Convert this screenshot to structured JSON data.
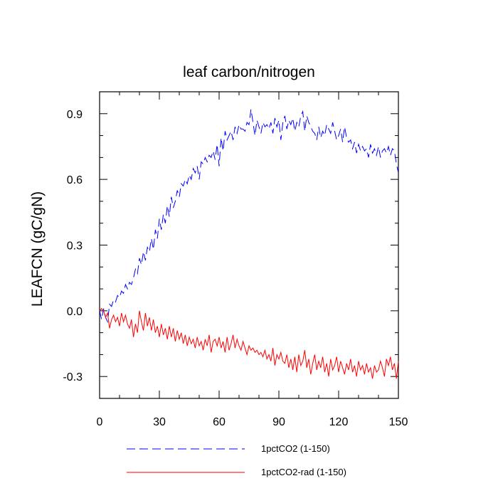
{
  "chart_data": {
    "type": "line",
    "title": "leaf carbon/nitrogen",
    "xlabel": "",
    "ylabel": "LEAFCN  (gC/gN)",
    "xlim": [
      0,
      150
    ],
    "ylim": [
      -0.4,
      1.0
    ],
    "xticks": [
      0,
      30,
      60,
      90,
      120,
      150
    ],
    "yticks": [
      -0.3,
      0.0,
      0.3,
      0.6,
      0.9
    ],
    "ytick_labels": [
      "-0.3",
      "0.0",
      "0.3",
      "0.6",
      "0.9"
    ],
    "xtick_labels": [
      "0",
      "30",
      "60",
      "90",
      "120",
      "150"
    ],
    "legend_position": "bottom",
    "series": [
      {
        "name": "1pctCO2 (1-150)",
        "color": "#0000ff",
        "style": "dashed",
        "values": [
          0.0,
          -0.04,
          0.01,
          -0.03,
          -0.05,
          0.03,
          0.02,
          0.05,
          0.04,
          0.07,
          0.06,
          0.09,
          0.08,
          0.12,
          0.1,
          0.13,
          0.12,
          0.15,
          0.19,
          0.17,
          0.24,
          0.21,
          0.27,
          0.23,
          0.29,
          0.27,
          0.33,
          0.28,
          0.37,
          0.33,
          0.42,
          0.37,
          0.44,
          0.4,
          0.48,
          0.43,
          0.52,
          0.47,
          0.5,
          0.55,
          0.52,
          0.58,
          0.57,
          0.6,
          0.58,
          0.62,
          0.6,
          0.65,
          0.63,
          0.66,
          0.6,
          0.68,
          0.67,
          0.7,
          0.68,
          0.71,
          0.7,
          0.73,
          0.69,
          0.76,
          0.66,
          0.79,
          0.73,
          0.82,
          0.78,
          0.8,
          0.82,
          0.78,
          0.84,
          0.81,
          0.85,
          0.83,
          0.83,
          0.82,
          0.86,
          0.85,
          0.92,
          0.86,
          0.8,
          0.87,
          0.84,
          0.81,
          0.86,
          0.84,
          0.85,
          0.83,
          0.86,
          0.81,
          0.88,
          0.84,
          0.87,
          0.78,
          0.86,
          0.89,
          0.83,
          0.87,
          0.85,
          0.88,
          0.82,
          0.86,
          0.84,
          0.89,
          0.91,
          0.82,
          0.89,
          0.86,
          0.84,
          0.82,
          0.81,
          0.78,
          0.84,
          0.79,
          0.82,
          0.8,
          0.85,
          0.83,
          0.81,
          0.86,
          0.82,
          0.78,
          0.8,
          0.83,
          0.77,
          0.84,
          0.79,
          0.77,
          0.78,
          0.74,
          0.77,
          0.72,
          0.76,
          0.73,
          0.75,
          0.73,
          0.74,
          0.7,
          0.76,
          0.72,
          0.74,
          0.71,
          0.75,
          0.7,
          0.73,
          0.74,
          0.72,
          0.75,
          0.71,
          0.74,
          0.73,
          0.67,
          0.63
        ]
      },
      {
        "name": "1pctCO2-rad (1-150)",
        "color": "#ff0000",
        "style": "solid",
        "values": [
          0.0,
          0.01,
          0.0,
          -0.03,
          -0.01,
          -0.08,
          -0.04,
          -0.02,
          -0.05,
          -0.03,
          -0.07,
          -0.01,
          -0.05,
          -0.02,
          -0.06,
          -0.08,
          -0.04,
          -0.12,
          -0.06,
          -0.1,
          0.0,
          -0.05,
          -0.09,
          -0.01,
          -0.07,
          -0.03,
          -0.09,
          -0.04,
          -0.1,
          -0.07,
          -0.12,
          -0.06,
          -0.11,
          -0.08,
          -0.13,
          -0.07,
          -0.12,
          -0.08,
          -0.14,
          -0.09,
          -0.13,
          -0.1,
          -0.15,
          -0.11,
          -0.16,
          -0.12,
          -0.15,
          -0.13,
          -0.17,
          -0.12,
          -0.16,
          -0.14,
          -0.18,
          -0.13,
          -0.16,
          -0.11,
          -0.19,
          -0.14,
          -0.13,
          -0.16,
          -0.12,
          -0.17,
          -0.14,
          -0.19,
          -0.12,
          -0.18,
          -0.15,
          -0.11,
          -0.17,
          -0.13,
          -0.16,
          -0.18,
          -0.14,
          -0.17,
          -0.2,
          -0.16,
          -0.18,
          -0.17,
          -0.19,
          -0.18,
          -0.2,
          -0.19,
          -0.21,
          -0.18,
          -0.22,
          -0.2,
          -0.23,
          -0.17,
          -0.25,
          -0.2,
          -0.22,
          -0.19,
          -0.23,
          -0.24,
          -0.2,
          -0.26,
          -0.22,
          -0.27,
          -0.21,
          -0.28,
          -0.2,
          -0.25,
          -0.23,
          -0.18,
          -0.26,
          -0.22,
          -0.29,
          -0.24,
          -0.2,
          -0.27,
          -0.23,
          -0.26,
          -0.21,
          -0.28,
          -0.24,
          -0.3,
          -0.22,
          -0.27,
          -0.25,
          -0.21,
          -0.28,
          -0.23,
          -0.26,
          -0.29,
          -0.24,
          -0.27,
          -0.22,
          -0.28,
          -0.25,
          -0.3,
          -0.23,
          -0.27,
          -0.25,
          -0.29,
          -0.24,
          -0.28,
          -0.26,
          -0.31,
          -0.25,
          -0.28,
          -0.27,
          -0.23,
          -0.26,
          -0.3,
          -0.22,
          -0.25,
          -0.21,
          -0.27,
          -0.24,
          -0.31,
          -0.23
        ]
      }
    ]
  }
}
